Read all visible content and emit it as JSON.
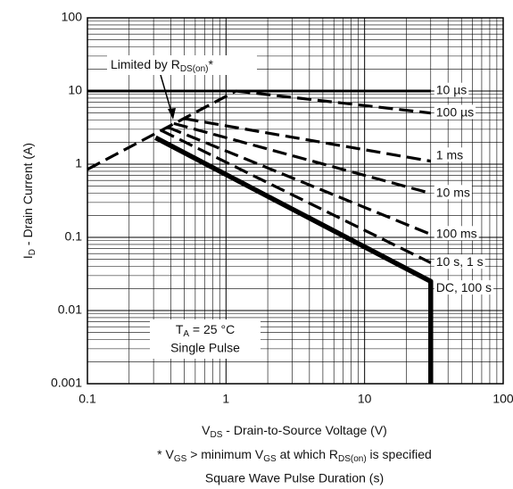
{
  "chart_data": {
    "type": "line",
    "x_scale": "log",
    "y_scale": "log",
    "grid": true,
    "minor_grid": true,
    "xlim": [
      0.1,
      100
    ],
    "ylim": [
      0.001,
      100
    ],
    "xticks": [
      0.1,
      1,
      10,
      100
    ],
    "yticks": [
      0.001,
      0.01,
      0.1,
      1,
      10,
      100
    ],
    "x_label": [
      "V",
      "DS",
      " - Drain-to-Source Voltage (V)"
    ],
    "y_label": [
      "I",
      "D",
      " - Drain Current (A)"
    ],
    "footnote": [
      "* V",
      "GS",
      " > minimum V",
      "GS",
      " at which R",
      "DS(on)",
      " is specified"
    ],
    "caption": "Square Wave Pulse Duration (s)",
    "annotation_limit": [
      "Limited by R",
      "DS(on)",
      "*"
    ],
    "annotation_conditions": [
      "T",
      "A",
      " = 25 °C",
      "Single Pulse"
    ],
    "series": [
      {
        "x": [
          0.1,
          1.18
        ],
        "values": [
          0.85,
          10
        ],
        "style": "dashed",
        "color": "#000000"
      },
      {
        "name": "10 µs",
        "x": [
          0.1,
          30
        ],
        "values": [
          10,
          10
        ],
        "style": "solid",
        "color": "#000000"
      },
      {
        "name": "100 µs",
        "x": [
          1.18,
          30
        ],
        "values": [
          10,
          5
        ],
        "style": "dashed",
        "color": "#000000"
      },
      {
        "name": "1 ms",
        "x": [
          0.5,
          30
        ],
        "values": [
          4.2,
          1.1
        ],
        "style": "dashed",
        "color": "#000000"
      },
      {
        "name": "10 ms",
        "x": [
          0.42,
          30
        ],
        "values": [
          3.6,
          0.4
        ],
        "style": "dashed",
        "color": "#000000"
      },
      {
        "name": "100 ms",
        "x": [
          0.38,
          30
        ],
        "values": [
          3.2,
          0.11
        ],
        "style": "dashed",
        "color": "#000000"
      },
      {
        "name": "10 s, 1 s",
        "x": [
          0.34,
          30
        ],
        "values": [
          2.9,
          0.045
        ],
        "style": "dashed",
        "color": "#000000"
      },
      {
        "name": "DC, 100 s",
        "x": [
          0.31,
          30,
          30
        ],
        "values": [
          2.3,
          0.025,
          0.001
        ],
        "style": "thick",
        "color": "#000000"
      }
    ]
  }
}
